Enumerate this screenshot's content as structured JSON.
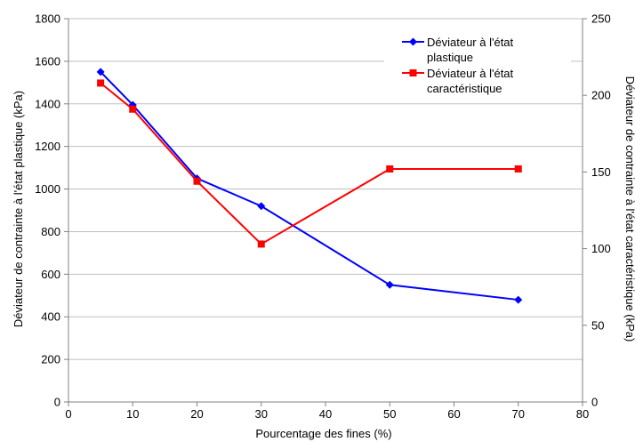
{
  "chart_data": {
    "type": "line",
    "title": "",
    "xlabel": "Pourcentage des fines (%)",
    "ylabel_left": "Déviateur de contrainte à l'état plastique (kPa)",
    "ylabel_right": "Déviateur de contrainte à l'état caractéristique (kPa)",
    "xlim": [
      0,
      80
    ],
    "xticks": [
      0,
      10,
      20,
      30,
      40,
      50,
      60,
      70,
      80
    ],
    "ylim_left": [
      0,
      1800
    ],
    "yticks_left": [
      0,
      200,
      400,
      600,
      800,
      1000,
      1200,
      1400,
      1600,
      1800
    ],
    "ylim_right": [
      0,
      250
    ],
    "yticks_right": [
      0,
      50,
      100,
      150,
      200,
      250
    ],
    "grid": "horizontal",
    "legend_position": "top-right",
    "series": [
      {
        "name": "Déviateur à l'état plastique",
        "axis": "left",
        "color": "#0000ff",
        "marker": "diamond",
        "x": [
          5,
          10,
          20,
          30,
          50,
          70
        ],
        "y": [
          1550,
          1395,
          1050,
          920,
          550,
          480
        ]
      },
      {
        "name": "Déviateur à l'état caractéristique",
        "axis": "right",
        "color": "#ff0000",
        "marker": "square",
        "x": [
          5,
          10,
          20,
          30,
          50,
          70
        ],
        "y": [
          208,
          191,
          144,
          103,
          152,
          152
        ]
      }
    ]
  }
}
